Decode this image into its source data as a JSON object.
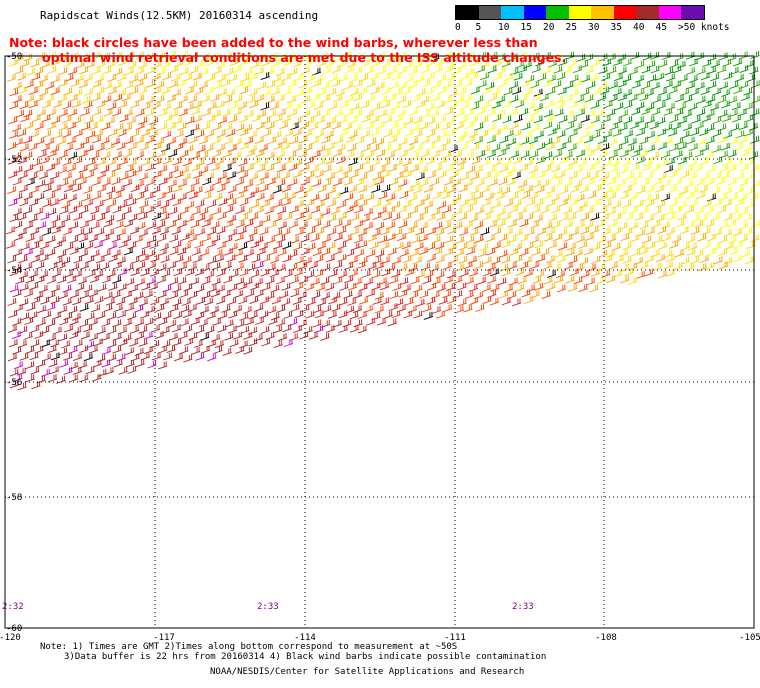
{
  "title": "Rapidscat Winds(12.5KM) 20160314 ascending",
  "note_red": [
    "Note: black circles have been added to the wind barbs, wherever less than",
    "optimal wind retrieval conditions are met due to the ISS altitude changes."
  ],
  "legend": {
    "labels": [
      "0",
      "5",
      "10",
      "15",
      "20",
      "25",
      "30",
      "35",
      "40",
      "45",
      ">50 knots"
    ],
    "colors": [
      "#000000",
      "#555555",
      "#00bfff",
      "#0000ff",
      "#00c000",
      "#ffff00",
      "#ffc000",
      "#ff0000",
      "#a52a2a",
      "#ff00ff",
      "#6a0dad"
    ]
  },
  "map": {
    "lon_labels": [
      "-120",
      "-117",
      "-114",
      "-111",
      "-108",
      "-105"
    ],
    "lat_labels": [
      "-50",
      "-52",
      "-54",
      "-56",
      "-58",
      "-60"
    ],
    "time_labels": [
      "2:32",
      "2:33",
      "2:33"
    ]
  },
  "footer": {
    "line1": "Note: 1) Times are GMT 2)Times along bottom correspond to measurement at ~50S",
    "line2": "3)Data buffer is 22 hrs from 20160314 4) Black wind barbs indicate possible contamination",
    "credit": "NOAA/NESDIS/Center for Satellite Applications and Research"
  }
}
